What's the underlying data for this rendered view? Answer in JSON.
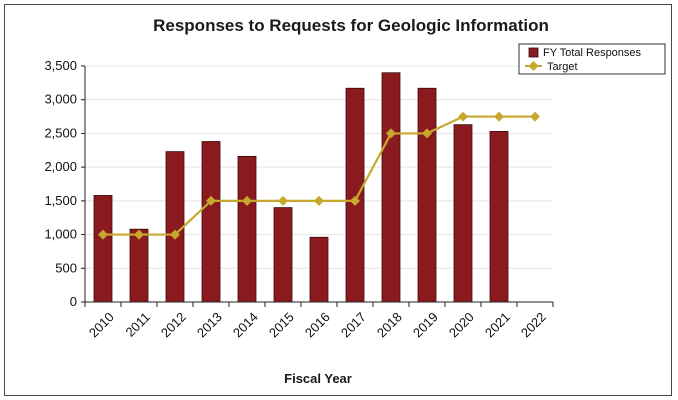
{
  "chart_data": {
    "type": "bar",
    "title": "Responses to Requests for Geologic Information",
    "xlabel": "Fiscal Year",
    "ylabel": "",
    "categories": [
      "2010",
      "2011",
      "2012",
      "2013",
      "2014",
      "2015",
      "2016",
      "2017",
      "2018",
      "2019",
      "2020",
      "2021",
      "2022"
    ],
    "yticks": [
      "0",
      "500",
      "1,000",
      "1,500",
      "2,000",
      "2,500",
      "3,000",
      "3,500"
    ],
    "ylim": [
      0,
      3500
    ],
    "grid": true,
    "legend_position": "top-right",
    "series": [
      {
        "name": "FY Total Responses",
        "type": "bar",
        "color": "#8b1a1f",
        "values": [
          1580,
          1080,
          2230,
          2380,
          2160,
          1400,
          960,
          3170,
          3400,
          3170,
          2630,
          2530,
          null
        ]
      },
      {
        "name": "Target",
        "type": "line",
        "color": "#c8a82c",
        "values": [
          1000,
          1000,
          1000,
          1500,
          1500,
          1500,
          1500,
          1500,
          2500,
          2500,
          2750,
          2750,
          2750
        ]
      }
    ]
  }
}
